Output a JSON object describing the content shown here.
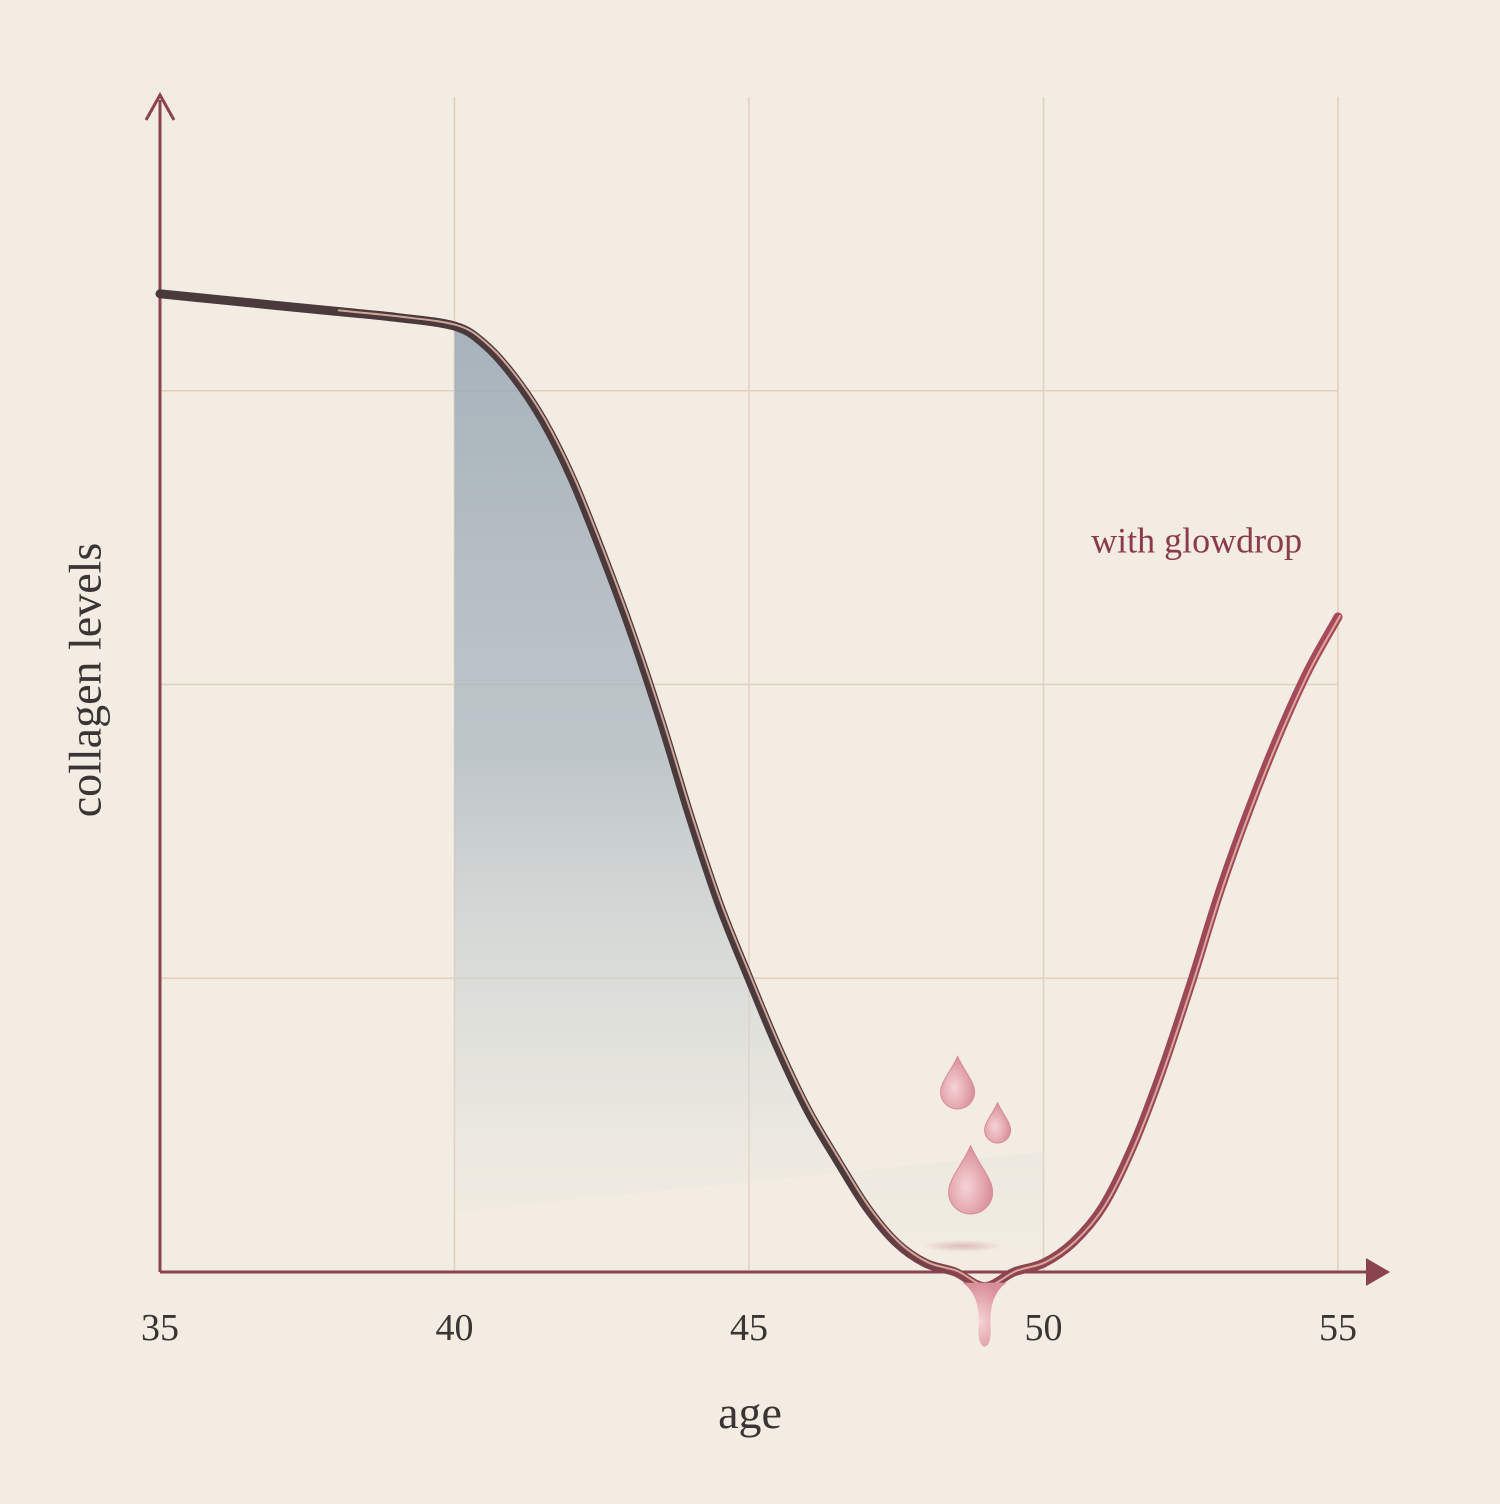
{
  "chart_data": {
    "type": "line",
    "xlabel": "age",
    "ylabel": "collagen levels",
    "xlim": [
      35,
      55
    ],
    "ylim": [
      0,
      4
    ],
    "x_ticks": [
      35,
      40,
      45,
      50,
      55
    ],
    "y_grid": [
      1,
      2,
      3
    ],
    "grid": true,
    "annotations": [
      {
        "text": "with glowdrop",
        "x": 52.6,
        "y": 2.45
      }
    ],
    "series": [
      {
        "x": [
          35,
          36,
          37,
          38,
          39,
          40,
          40.5,
          41,
          41.5,
          42,
          42.5,
          43,
          43.5,
          44,
          44.5,
          45,
          45.5,
          46,
          46.5,
          47,
          47.5,
          48,
          48.5,
          49,
          49.5,
          50,
          50.5,
          51,
          51.5,
          52,
          52.5,
          53,
          53.5,
          54,
          54.5,
          55
        ],
        "y": [
          3.33,
          3.31,
          3.29,
          3.27,
          3.25,
          3.22,
          3.16,
          3.05,
          2.9,
          2.7,
          2.45,
          2.18,
          1.88,
          1.55,
          1.25,
          1.0,
          0.76,
          0.55,
          0.38,
          0.22,
          0.1,
          0.03,
          0.0,
          -0.05,
          0.0,
          0.03,
          0.1,
          0.22,
          0.42,
          0.68,
          0.98,
          1.3,
          1.58,
          1.83,
          2.05,
          2.23
        ]
      }
    ],
    "colors": {
      "axis": "#8a4450",
      "grid": "#e3cfc0",
      "line_dark": "#4a3a3c",
      "line_rose": "#a84a5c",
      "highlight": "#e8b8a8",
      "fill": "#9aa8b4",
      "droplet": "#e3a3ac",
      "annotation": "#8a3a4c",
      "text": "#3a3434"
    }
  }
}
